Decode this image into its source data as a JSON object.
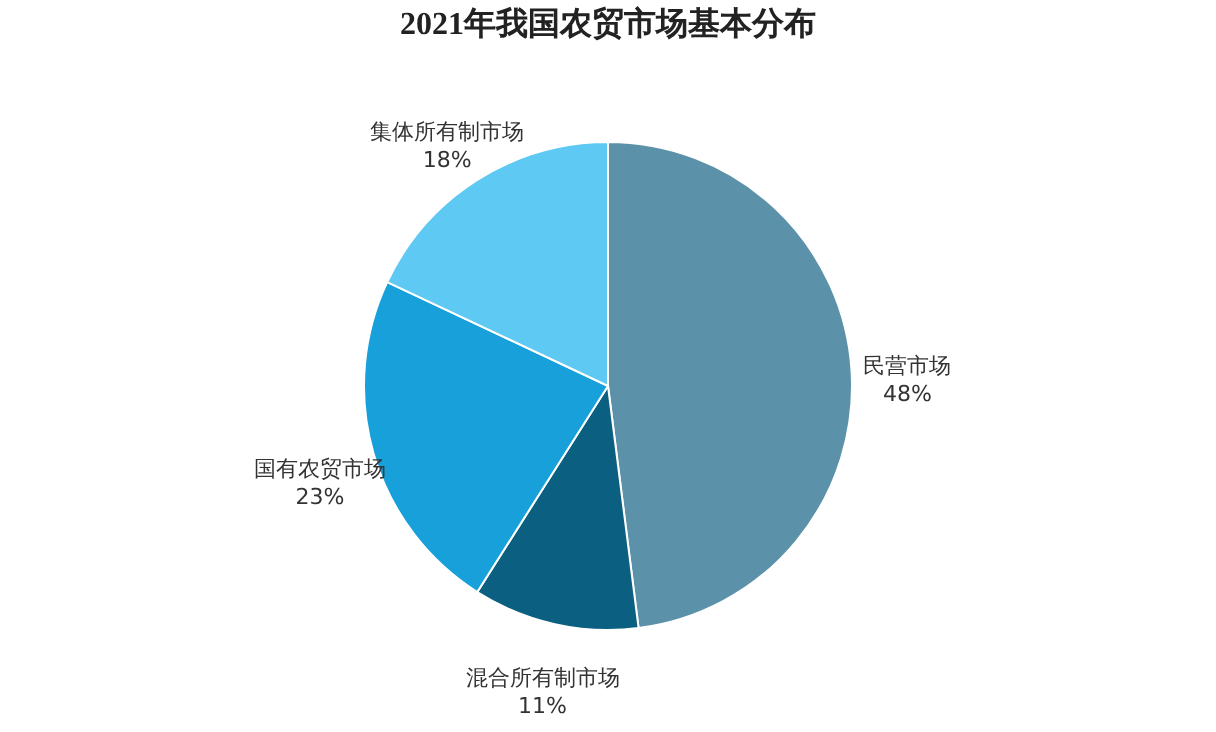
{
  "chart_data": {
    "type": "pie",
    "title": "2021年我国农贸市场基本分布",
    "categories": [
      "民营市场",
      "混合所有制市场",
      "国有农贸市场",
      "集体所有制市场"
    ],
    "values": [
      48,
      11,
      23,
      18
    ],
    "value_labels": [
      "48%",
      "11%",
      "23%",
      "18%"
    ],
    "colors": [
      "#5b91a9",
      "#0b5f80",
      "#17a0d9",
      "#5ec9f2"
    ],
    "legend": false
  }
}
